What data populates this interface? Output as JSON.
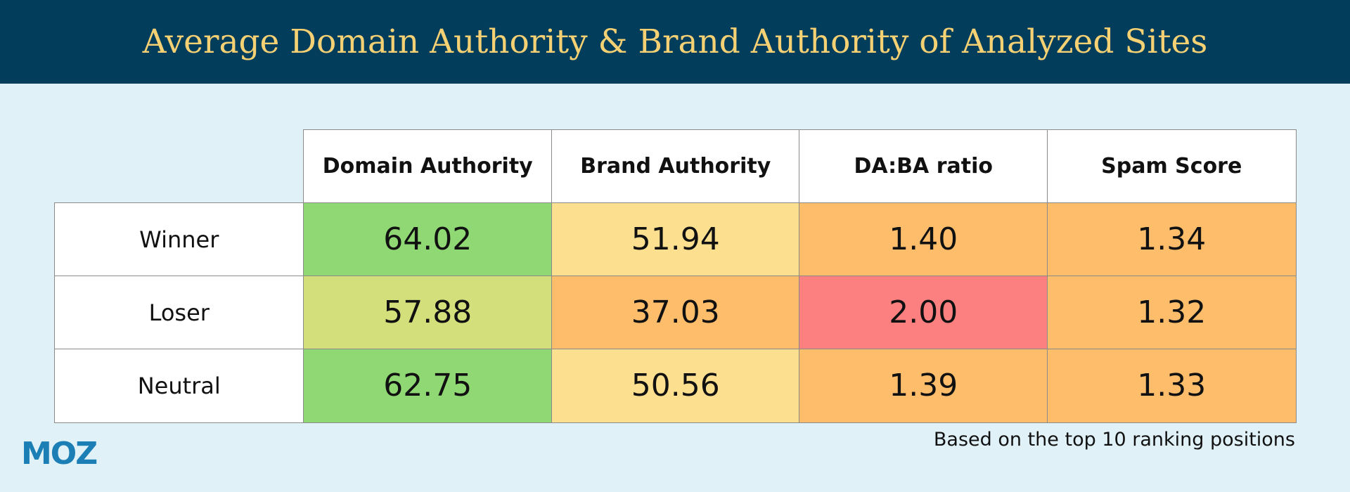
{
  "header": {
    "title": "Average Domain Authority & Brand Authority of Analyzed Sites"
  },
  "table": {
    "columns": [
      "Domain Authority",
      "Brand Authority",
      "DA:BA ratio",
      "Spam Score"
    ],
    "rows": [
      {
        "label": "Winner",
        "cells": [
          "64.02",
          "51.94",
          "1.40",
          "1.34"
        ],
        "colors": [
          "#8fd873",
          "#fde08f",
          "#fdbd6b",
          "#fdbd6b"
        ]
      },
      {
        "label": "Loser",
        "cells": [
          "57.88",
          "37.03",
          "2.00",
          "1.32"
        ],
        "colors": [
          "#d3df7b",
          "#fdbd6b",
          "#fd8080",
          "#fdbd6b"
        ]
      },
      {
        "label": "Neutral",
        "cells": [
          "62.75",
          "50.56",
          "1.39",
          "1.33"
        ],
        "colors": [
          "#8fd873",
          "#fde08f",
          "#fdbd6b",
          "#fdbd6b"
        ]
      }
    ]
  },
  "footnote": "Based on the top 10 ranking positions",
  "logo": "MOZ"
}
